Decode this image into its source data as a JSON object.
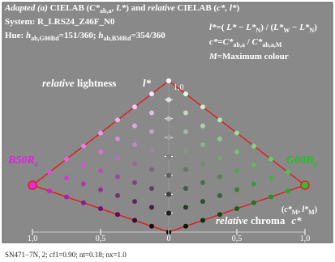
{
  "header": {
    "title": [
      "Adapted (a)",
      " CIELAB (",
      "C*",
      "ab,a",
      ", ",
      "L*",
      ") and ",
      "relative",
      " CIELAB (",
      "c*, l*",
      ")"
    ],
    "system": "System: R_LRS24_Z46F_N0",
    "hue": [
      "Hue: ",
      "h",
      "ab,G00Bd",
      "=151/360; ",
      "h",
      "ab,B50Rd",
      "=354/360"
    ]
  },
  "formulas": {
    "lightness": [
      "l*",
      "=( ",
      "L*",
      " − ",
      "L*",
      "N",
      ") / (",
      "L*",
      "W",
      " − ",
      "L*",
      "N",
      ")"
    ],
    "chroma": [
      "c*",
      "=",
      "C*",
      "ab,a",
      " / ",
      "C*",
      "ab,a,M"
    ],
    "maximum": [
      "M",
      "=Maximum colour"
    ]
  },
  "labels": {
    "lightness_axis": [
      "relative",
      " lightness",
      "l*"
    ],
    "top_value": "1,0",
    "left_hue": [
      "B50R",
      "d"
    ],
    "right_hue": [
      "G00B",
      "d"
    ],
    "max_point": [
      "(",
      "c*",
      "M",
      ", ",
      "l*",
      "M",
      ")"
    ],
    "chroma_axis": [
      "relative",
      " chroma",
      "c*"
    ]
  },
  "axis": {
    "ticks": [
      "1,0",
      "0,5",
      "0",
      "0,5",
      "1,0"
    ]
  },
  "footer": "SN471−7N, 2; cf1=0.90; nt=0.18; nx=1.0"
}
